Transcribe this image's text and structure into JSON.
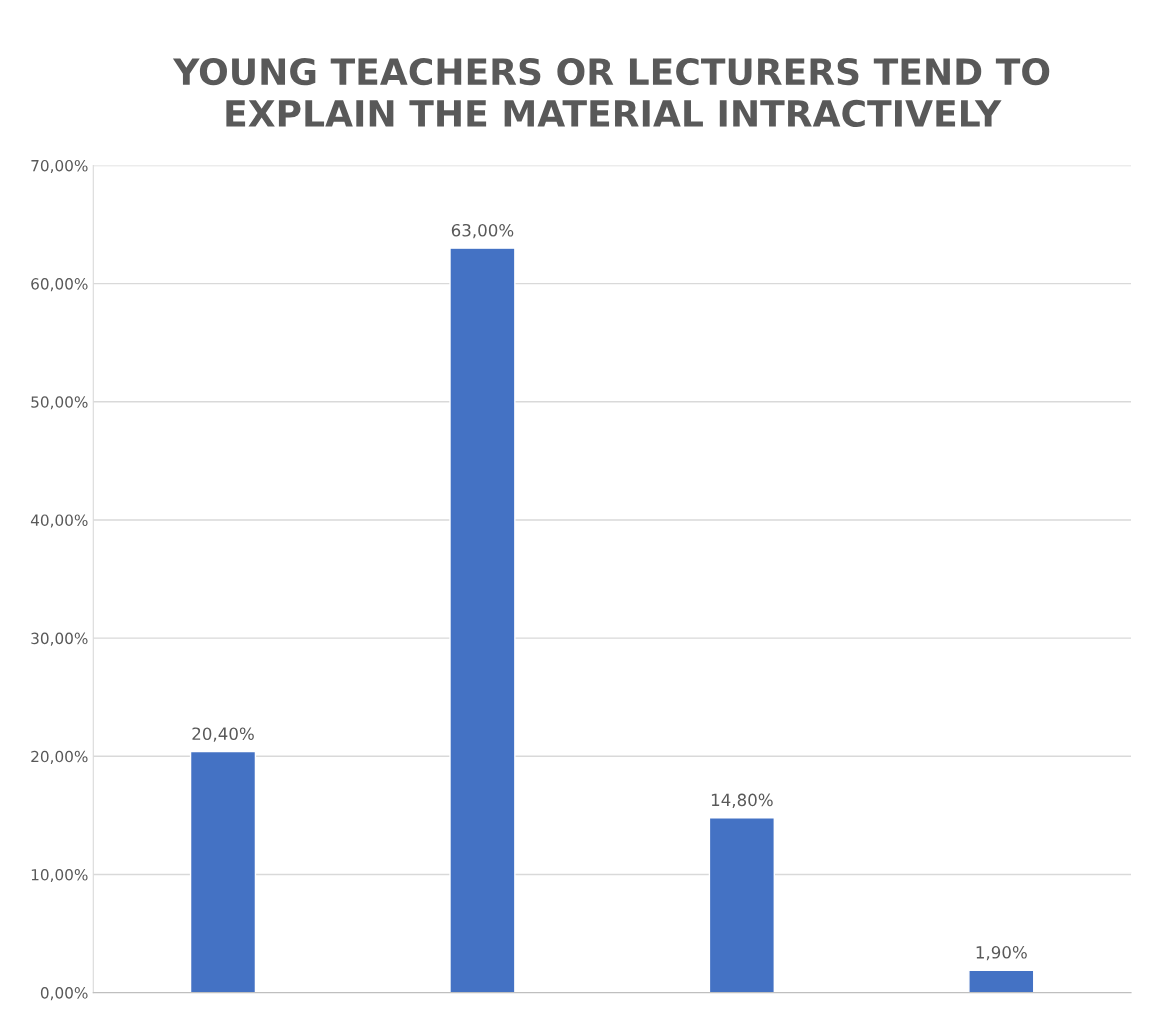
{
  "chart_data": {
    "type": "bar",
    "title": "YOUNG TEACHERS OR LECTURERS TEND TO\nEXPLAIN THE MATERIAL INTRACTIVELY",
    "categories": [
      null,
      null,
      null,
      null
    ],
    "values": [
      20.4,
      63.0,
      14.8,
      1.9
    ],
    "value_labels": [
      "20,40%",
      "63,00%",
      "14,80%",
      "1,90%"
    ],
    "color": "#4472c4",
    "ylim": [
      0,
      70
    ],
    "yticks": [
      {
        "value": 0,
        "label": "0,00%"
      },
      {
        "value": 10,
        "label": "10,00%"
      },
      {
        "value": 20,
        "label": "20,00%"
      },
      {
        "value": 30,
        "label": "30,00%"
      },
      {
        "value": 40,
        "label": "40,00%"
      },
      {
        "value": 50,
        "label": "50,00%"
      },
      {
        "value": 60,
        "label": "60,00%"
      },
      {
        "value": 70,
        "label": "70,00%"
      }
    ],
    "grid": "y",
    "legend": false
  }
}
